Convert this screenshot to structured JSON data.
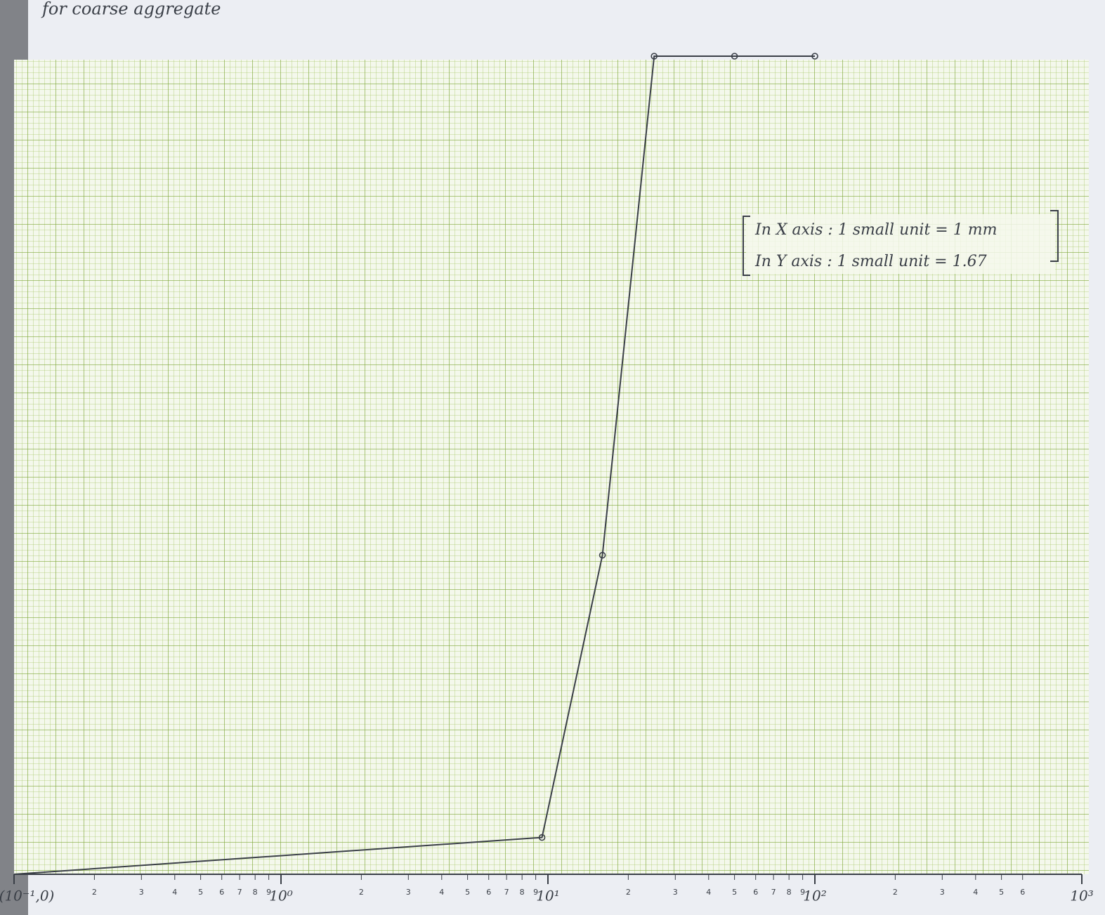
{
  "chart_data": {
    "type": "line",
    "title": "for coarse aggregate",
    "log_x": true,
    "x": [
      0.1,
      9.5,
      16,
      25,
      50,
      100
    ],
    "values": [
      0,
      4.5,
      39,
      100,
      100,
      100
    ],
    "color": "#3a3f47",
    "xlim": [
      0.1,
      1000
    ],
    "ylim": [
      0,
      100
    ],
    "xticks": [
      {
        "value": 0.1,
        "label": "(10⁻¹,0)"
      },
      {
        "value": 0.2,
        "label": "2"
      },
      {
        "value": 0.3,
        "label": "3"
      },
      {
        "value": 0.4,
        "label": "4"
      },
      {
        "value": 0.5,
        "label": "5"
      },
      {
        "value": 0.6,
        "label": "6"
      },
      {
        "value": 0.7,
        "label": "7"
      },
      {
        "value": 0.8,
        "label": "8"
      },
      {
        "value": 0.9,
        "label": "9"
      },
      {
        "value": 1,
        "label": "10⁰"
      },
      {
        "value": 2,
        "label": "2"
      },
      {
        "value": 3,
        "label": "3"
      },
      {
        "value": 4,
        "label": "4"
      },
      {
        "value": 5,
        "label": "5"
      },
      {
        "value": 6,
        "label": "6"
      },
      {
        "value": 7,
        "label": "7"
      },
      {
        "value": 8,
        "label": "8"
      },
      {
        "value": 9,
        "label": "9"
      },
      {
        "value": 10,
        "label": "10¹"
      },
      {
        "value": 20,
        "label": "2"
      },
      {
        "value": 30,
        "label": "3"
      },
      {
        "value": 40,
        "label": "4"
      },
      {
        "value": 50,
        "label": "5"
      },
      {
        "value": 60,
        "label": "6"
      },
      {
        "value": 70,
        "label": "7"
      },
      {
        "value": 80,
        "label": "8"
      },
      {
        "value": 90,
        "label": "9"
      },
      {
        "value": 100,
        "label": "10²"
      },
      {
        "value": 200,
        "label": "2"
      },
      {
        "value": 300,
        "label": "3"
      },
      {
        "value": 400,
        "label": "4"
      },
      {
        "value": 500,
        "label": "5"
      },
      {
        "value": 600,
        "label": "6"
      },
      {
        "value": 1000,
        "label": "10³"
      }
    ],
    "annotations": [
      "In X axis : 1 small unit = 1 mm",
      "In Y axis : 1 small unit = 1.67"
    ]
  }
}
